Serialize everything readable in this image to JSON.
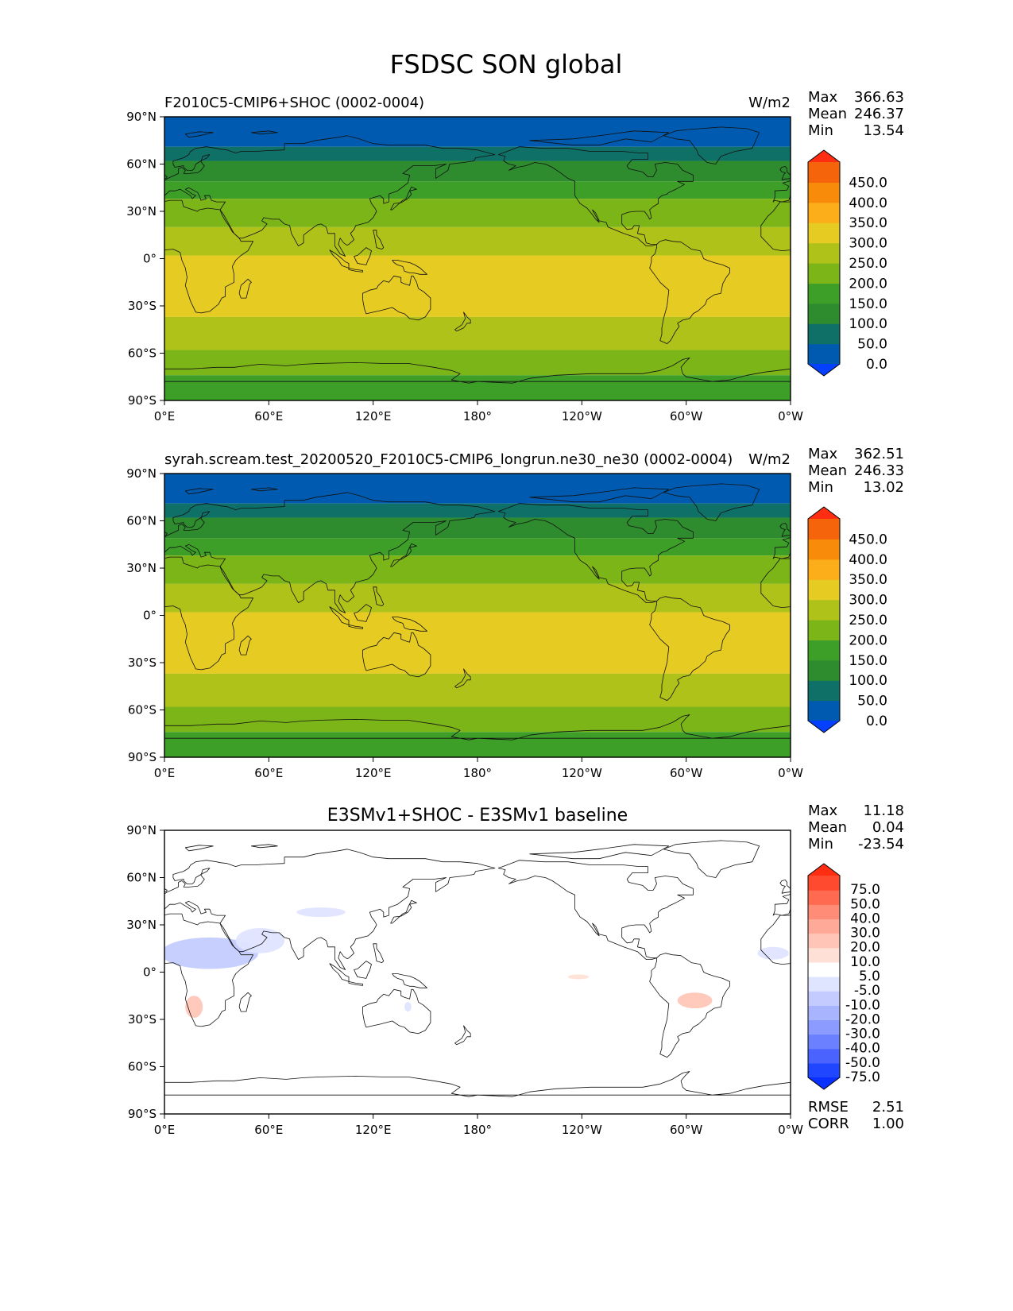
{
  "figure": {
    "title": "FSDSC SON global"
  },
  "chart_data": [
    {
      "type": "heatmap",
      "panel": "test",
      "title": "F2010C5-CMIP6+SHOC (0002-0004)",
      "units": "W/m2",
      "stats": [
        {
          "label": "Max",
          "value": "366.63"
        },
        {
          "label": "Mean",
          "value": "246.37"
        },
        {
          "label": "Min",
          "value": "13.54"
        }
      ],
      "x_ticks": [
        "0°E",
        "60°E",
        "120°E",
        "180°",
        "120°W",
        "60°W",
        "0°W"
      ],
      "y_ticks": [
        "90°N",
        "60°N",
        "30°N",
        "0°",
        "30°S",
        "60°S",
        "90°S"
      ],
      "xlim": [
        0,
        360
      ],
      "ylim": [
        -90,
        90
      ],
      "levels": [
        "0.0",
        "50.0",
        "100.0",
        "150.0",
        "200.0",
        "250.0",
        "300.0",
        "350.0",
        "400.0",
        "450.0"
      ],
      "colorbar": [
        "#0540ff",
        "#005bb0",
        "#0f7068",
        "#2e8b2e",
        "#3d9e28",
        "#7cb518",
        "#aec21a",
        "#e6cb23",
        "#fbae1a",
        "#f88c0a",
        "#f5640a",
        "#ff2e12"
      ],
      "bands": [
        {
          "lat": [
            90,
            71
          ],
          "value": 25
        },
        {
          "lat": [
            71,
            62
          ],
          "value": 75
        },
        {
          "lat": [
            62,
            49
          ],
          "value": 125
        },
        {
          "lat": [
            49,
            38
          ],
          "value": 175
        },
        {
          "lat": [
            38,
            20
          ],
          "value": 225
        },
        {
          "lat": [
            20,
            2
          ],
          "value": 275
        },
        {
          "lat": [
            2,
            -37
          ],
          "value": 325
        },
        {
          "lat": [
            -37,
            -58
          ],
          "value": 275
        },
        {
          "lat": [
            -58,
            -74
          ],
          "value": 225
        },
        {
          "lat": [
            -74,
            -90
          ],
          "value": 175
        }
      ]
    },
    {
      "type": "heatmap",
      "panel": "reference",
      "title": "syrah.scream.test_20200520_F2010C5-CMIP6_longrun.ne30_ne30 (0002-0004)",
      "units": "W/m2",
      "stats": [
        {
          "label": "Max",
          "value": "362.51"
        },
        {
          "label": "Mean",
          "value": "246.33"
        },
        {
          "label": "Min",
          "value": "13.02"
        }
      ],
      "x_ticks": [
        "0°E",
        "60°E",
        "120°E",
        "180°",
        "120°W",
        "60°W",
        "0°W"
      ],
      "y_ticks": [
        "90°N",
        "60°N",
        "30°N",
        "0°",
        "30°S",
        "60°S",
        "90°S"
      ],
      "xlim": [
        0,
        360
      ],
      "ylim": [
        -90,
        90
      ],
      "levels": [
        "0.0",
        "50.0",
        "100.0",
        "150.0",
        "200.0",
        "250.0",
        "300.0",
        "350.0",
        "400.0",
        "450.0"
      ],
      "colorbar": [
        "#0540ff",
        "#005bb0",
        "#0f7068",
        "#2e8b2e",
        "#3d9e28",
        "#7cb518",
        "#aec21a",
        "#e6cb23",
        "#fbae1a",
        "#f88c0a",
        "#f5640a",
        "#ff2e12"
      ],
      "bands": [
        {
          "lat": [
            90,
            71
          ],
          "value": 25
        },
        {
          "lat": [
            71,
            62
          ],
          "value": 75
        },
        {
          "lat": [
            62,
            49
          ],
          "value": 125
        },
        {
          "lat": [
            49,
            38
          ],
          "value": 175
        },
        {
          "lat": [
            38,
            20
          ],
          "value": 225
        },
        {
          "lat": [
            20,
            2
          ],
          "value": 275
        },
        {
          "lat": [
            2,
            -37
          ],
          "value": 325
        },
        {
          "lat": [
            -37,
            -58
          ],
          "value": 275
        },
        {
          "lat": [
            -58,
            -74
          ],
          "value": 225
        },
        {
          "lat": [
            -74,
            -90
          ],
          "value": 175
        }
      ]
    },
    {
      "type": "heatmap",
      "panel": "difference",
      "title": "E3SMv1+SHOC - E3SMv1 baseline",
      "units": "",
      "stats": [
        {
          "label": "Max",
          "value": "11.18"
        },
        {
          "label": "Mean",
          "value": "0.04"
        },
        {
          "label": "Min",
          "value": "-23.54"
        }
      ],
      "metrics": [
        {
          "label": "RMSE",
          "value": "2.51"
        },
        {
          "label": "CORR",
          "value": "1.00"
        }
      ],
      "x_ticks": [
        "0°E",
        "60°E",
        "120°E",
        "180°",
        "120°W",
        "60°W",
        "0°W"
      ],
      "y_ticks": [
        "90°N",
        "60°N",
        "30°N",
        "0°",
        "30°S",
        "60°S",
        "90°S"
      ],
      "xlim": [
        0,
        360
      ],
      "ylim": [
        -90,
        90
      ],
      "levels": [
        "75.0",
        "50.0",
        "40.0",
        "30.0",
        "20.0",
        "10.0",
        "5.0",
        "-5.0",
        "-10.0",
        "-20.0",
        "-30.0",
        "-40.0",
        "-50.0",
        "-75.0"
      ],
      "colorbar": [
        "#ff2e12",
        "#ff4a30",
        "#ff6a50",
        "#ff8c76",
        "#ffaa98",
        "#ffc6b8",
        "#ffe0d6",
        "#ffffff",
        "#dfe4ff",
        "#c4ccff",
        "#a9b4ff",
        "#8c9bff",
        "#6b80ff",
        "#4a63ff",
        "#2047ff",
        "#0a30ff"
      ],
      "anomalies": [
        {
          "name": "north-africa",
          "lon": 26,
          "lat": 12,
          "rlon": 28,
          "rlat": 10,
          "value": -15
        },
        {
          "name": "arabia",
          "lon": 55,
          "lat": 20,
          "rlon": 14,
          "rlat": 8,
          "value": -10
        },
        {
          "name": "central-asia",
          "lon": 90,
          "lat": 38,
          "rlon": 14,
          "rlat": 3,
          "value": -10
        },
        {
          "name": "west-africa-coast",
          "lon": 350,
          "lat": 12,
          "rlon": 9,
          "rlat": 4,
          "value": -10
        },
        {
          "name": "southwest-africa",
          "lon": 17,
          "lat": -22,
          "rlon": 5,
          "rlat": 7,
          "value": 10
        },
        {
          "name": "tropical-pacific",
          "lon": 238,
          "lat": -3,
          "rlon": 6,
          "rlat": 1.5,
          "value": 7
        },
        {
          "name": "south-america",
          "lon": 305,
          "lat": -18,
          "rlon": 10,
          "rlat": 5,
          "value": 10
        },
        {
          "name": "australia",
          "lon": 140,
          "lat": -22,
          "rlon": 2,
          "rlat": 3,
          "value": -10
        }
      ]
    }
  ]
}
